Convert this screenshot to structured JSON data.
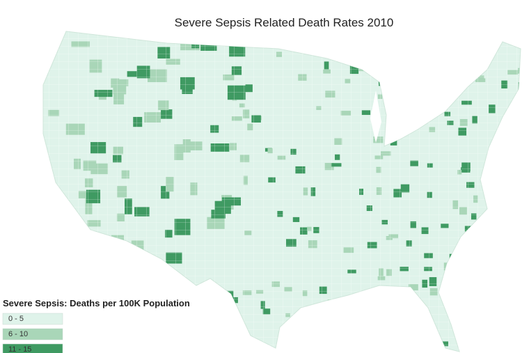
{
  "title": "Severe Sepsis Related Death Rates 2010",
  "legend": {
    "title": "Severe Sepsis: Deaths per 100K Population",
    "items": [
      {
        "label": "0 - 5",
        "color": "#dff3ea"
      },
      {
        "label": "6 - 10",
        "color": "#a9d6b8"
      },
      {
        "label": "11 - 15",
        "color": "#3f9a62"
      }
    ]
  }
}
